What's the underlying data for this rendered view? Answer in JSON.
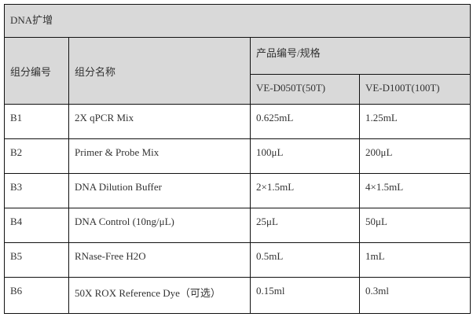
{
  "title": "DNA扩增",
  "headers": {
    "component_id": "组分编号",
    "component_name": "组分名称",
    "spec_group": "产品编号/规格",
    "spec_50": "VE-D050T(50T)",
    "spec_100": "VE-D100T(100T)"
  },
  "rows": [
    {
      "id": "B1",
      "name": "2X qPCR Mix",
      "v50": "0.625mL",
      "v100": "1.25mL"
    },
    {
      "id": "B2",
      "name": "Primer & Probe Mix",
      "v50": "100μL",
      "v100": "200μL"
    },
    {
      "id": "B3",
      "name": "DNA Dilution Buffer",
      "v50": "2×1.5mL",
      "v100": "4×1.5mL"
    },
    {
      "id": "B4",
      "name": "DNA Control (10ng/μL)",
      "v50": "25μL",
      "v100": "50μL"
    },
    {
      "id": "B5",
      "name": "RNase-Free H2O",
      "v50": "0.5mL",
      "v100": "1mL"
    },
    {
      "id": "B6",
      "name": "50X ROX Reference Dye（可选）",
      "v50": "0.15ml",
      "v100": "0.3ml"
    }
  ],
  "colors": {
    "header_bg": "#d9d9d9",
    "border": "#111111"
  }
}
